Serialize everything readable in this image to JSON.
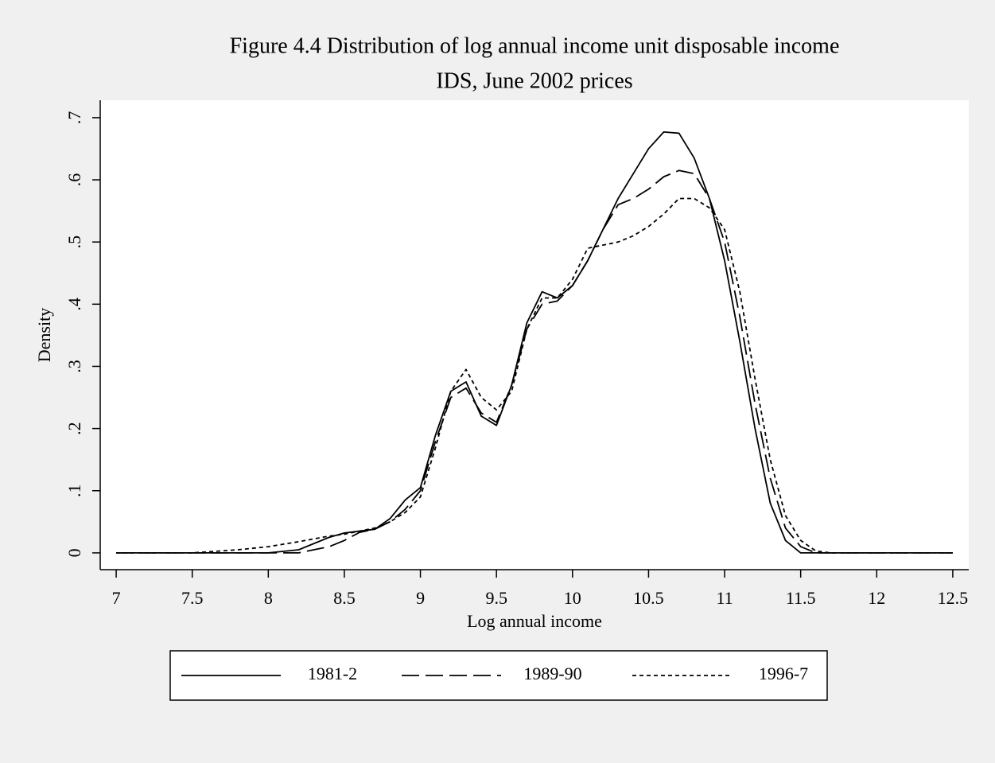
{
  "chart_data": {
    "type": "line",
    "title": "Figure 4.4 Distribution of log annual income unit disposable income",
    "subtitle": "IDS, June 2002 prices",
    "x_label": "Log annual income",
    "y_label": "Density",
    "x": [
      7,
      7.5,
      7.8,
      8.0,
      8.2,
      8.4,
      8.5,
      8.6,
      8.7,
      8.8,
      8.9,
      9.0,
      9.1,
      9.2,
      9.3,
      9.4,
      9.5,
      9.6,
      9.7,
      9.8,
      9.9,
      10.0,
      10.1,
      10.2,
      10.3,
      10.4,
      10.5,
      10.6,
      10.7,
      10.8,
      10.9,
      11.0,
      11.1,
      11.2,
      11.3,
      11.4,
      11.5,
      11.6,
      11.7,
      12.5
    ],
    "series": [
      {
        "name": "1981-2",
        "color": "#000000",
        "dash": "solid",
        "values": [
          0,
          0,
          0,
          0,
          0.005,
          0.025,
          0.032,
          0.035,
          0.038,
          0.055,
          0.085,
          0.105,
          0.19,
          0.26,
          0.275,
          0.22,
          0.205,
          0.27,
          0.37,
          0.42,
          0.41,
          0.43,
          0.47,
          0.52,
          0.57,
          0.61,
          0.65,
          0.677,
          0.675,
          0.635,
          0.57,
          0.47,
          0.34,
          0.2,
          0.08,
          0.02,
          0,
          0,
          0,
          0
        ]
      },
      {
        "name": "1989-90",
        "color": "#000000",
        "dash": "dash",
        "values": [
          0,
          0,
          0,
          0,
          0,
          0.01,
          0.02,
          0.033,
          0.038,
          0.05,
          0.07,
          0.1,
          0.18,
          0.25,
          0.265,
          0.225,
          0.21,
          0.27,
          0.36,
          0.4,
          0.405,
          0.43,
          0.47,
          0.52,
          0.56,
          0.57,
          0.585,
          0.605,
          0.615,
          0.61,
          0.57,
          0.5,
          0.38,
          0.24,
          0.12,
          0.04,
          0.01,
          0,
          0,
          0
        ]
      },
      {
        "name": "1996-7",
        "color": "#000000",
        "dash": "dot",
        "values": [
          0,
          0,
          0.005,
          0.01,
          0.018,
          0.027,
          0.03,
          0.035,
          0.04,
          0.05,
          0.065,
          0.09,
          0.17,
          0.26,
          0.295,
          0.25,
          0.23,
          0.26,
          0.36,
          0.41,
          0.41,
          0.44,
          0.49,
          0.495,
          0.5,
          0.51,
          0.525,
          0.545,
          0.57,
          0.57,
          0.555,
          0.52,
          0.42,
          0.28,
          0.15,
          0.06,
          0.02,
          0.003,
          0,
          0
        ]
      }
    ],
    "xlim": [
      6.895,
      12.605
    ],
    "ylim": [
      -0.027,
      0.728
    ],
    "xticks": [
      7,
      7.5,
      8,
      8.5,
      9,
      9.5,
      10,
      10.5,
      11,
      11.5,
      12,
      12.5
    ],
    "yticks": [
      0,
      {
        "value": 0.1,
        "label": ".1"
      },
      {
        "value": 0.2,
        "label": ".2"
      },
      {
        "value": 0.3,
        "label": ".3"
      },
      {
        "value": 0.4,
        "label": ".4"
      },
      {
        "value": 0.5,
        "label": ".5"
      },
      {
        "value": 0.6,
        "label": ".6"
      },
      {
        "value": 0.7,
        "label": ".7"
      }
    ],
    "legend": "bottom",
    "grid": false
  }
}
